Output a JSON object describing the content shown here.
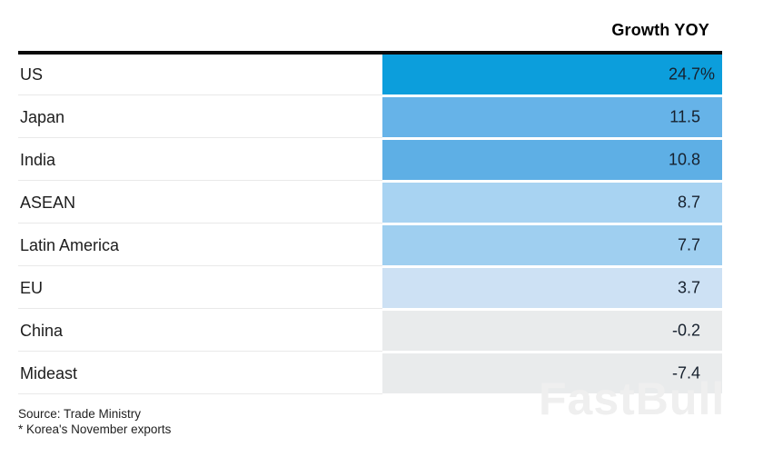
{
  "header": {
    "value_column_label": "Growth YOY"
  },
  "rows": [
    {
      "label": "US",
      "value": "24.7",
      "suffix": "%",
      "color": "#0c9edc"
    },
    {
      "label": "Japan",
      "value": "11.5",
      "suffix": "",
      "color": "#66b3e8"
    },
    {
      "label": "India",
      "value": "10.8",
      "suffix": "",
      "color": "#5eafe5"
    },
    {
      "label": "ASEAN",
      "value": "8.7",
      "suffix": "",
      "color": "#a8d3f2"
    },
    {
      "label": "Latin America",
      "value": "7.7",
      "suffix": "",
      "color": "#9fcff0"
    },
    {
      "label": "EU",
      "value": "3.7",
      "suffix": "",
      "color": "#cde1f4"
    },
    {
      "label": "China",
      "value": "-0.2",
      "suffix": "",
      "color": "#e9ebec"
    },
    {
      "label": "Mideast",
      "value": "-7.4",
      "suffix": "",
      "color": "#e9ebec"
    }
  ],
  "footer": {
    "source": "Source: Trade Ministry",
    "note": "* Korea's November exports"
  },
  "watermark": {
    "text": "FastBull"
  },
  "colors": {
    "rule": "#0a0a0a",
    "label_text": "#1d1d1d",
    "value_text": "#17212e",
    "separator": "#e9e9e9",
    "watermark": "#efefef"
  },
  "chart_data": {
    "type": "table",
    "title": "",
    "value_column": "Growth YOY",
    "categories": [
      "US",
      "Japan",
      "India",
      "ASEAN",
      "Latin America",
      "EU",
      "China",
      "Mideast"
    ],
    "values": [
      24.7,
      11.5,
      10.8,
      8.7,
      7.7,
      3.7,
      -0.2,
      -7.4
    ],
    "unit": "% growth year-over-year",
    "source": "Trade Ministry",
    "footnote": "* Korea's November exports",
    "layout_hints": "single value column of uniform-width color-scaled cells; blue shades for positive values (darker = larger), light gray for negative; percent sign shown only on first row; header right-aligned above black rule"
  }
}
